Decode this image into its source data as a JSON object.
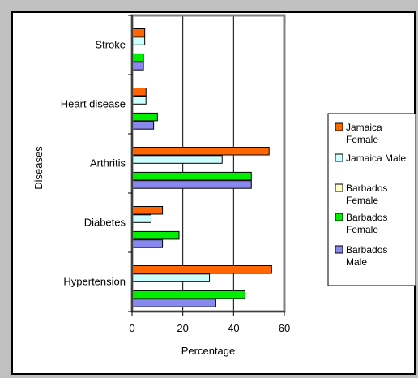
{
  "chart_data": {
    "type": "bar",
    "orientation": "horizontal",
    "categories": [
      "Stroke",
      "Heart disease",
      "Arthritis",
      "Diabetes",
      "Hypertension"
    ],
    "series": [
      {
        "name": "Jamaica Female",
        "color": "#ff6600",
        "values": [
          5,
          5.5,
          54,
          12,
          55
        ]
      },
      {
        "name": "Jamaica Male",
        "color": "#ccffff",
        "values": [
          5,
          5.5,
          35.5,
          7.5,
          30.5
        ]
      },
      {
        "name": "Barbados Female",
        "color": "#ffffcc",
        "values": [
          0,
          0,
          0,
          0,
          0
        ]
      },
      {
        "name": "Barbados Female",
        "color": "#00ee00",
        "values": [
          4.5,
          10,
          47,
          18.5,
          44.5
        ]
      },
      {
        "name": "Barbados Male",
        "color": "#8888ee",
        "values": [
          4.5,
          8.5,
          47,
          12,
          33
        ]
      }
    ],
    "legend_labels": [
      [
        "Jamaica",
        "Female"
      ],
      [
        "Jamaica Male"
      ],
      [
        "Barbados",
        "Female"
      ],
      [
        "Barbados",
        "Female"
      ],
      [
        "Barbados",
        "Male"
      ]
    ],
    "xlabel": "Percentage",
    "ylabel": "Diseases",
    "xlim": [
      0,
      60
    ],
    "xticks": [
      "0",
      "20",
      "40",
      "60"
    ],
    "grid": "vertical major gridlines",
    "legend_position": "right"
  }
}
